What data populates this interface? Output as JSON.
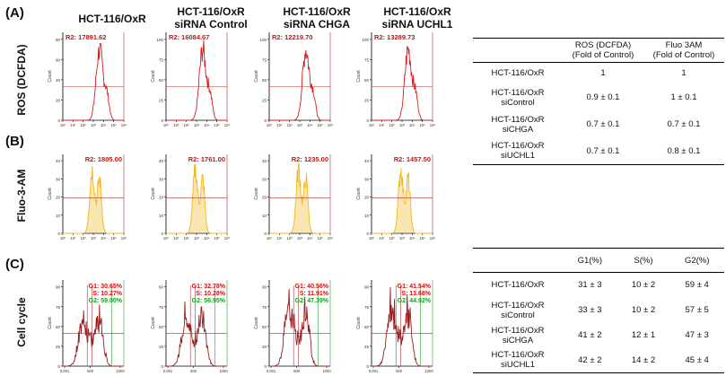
{
  "panels": [
    {
      "label": "(A)",
      "row_title": "ROS (DCFDA)"
    },
    {
      "label": "(B)",
      "row_title": "Fluo-3-AM"
    },
    {
      "label": "(C)",
      "row_title": "Cell cycle"
    }
  ],
  "columns": [
    {
      "line1": "HCT-116/OxR",
      "line2": ""
    },
    {
      "line1": "HCT-116/OxR",
      "line2": "siRNA Control"
    },
    {
      "line1": "HCT-116/OxR",
      "line2": "siRNA CHGA"
    },
    {
      "line1": "HCT-116/OxR",
      "line2": "siRNA UCHL1"
    }
  ],
  "colors": {
    "ros": "#e0191b",
    "fluo": "#f2b81c",
    "cycle": "#9b1c1c",
    "gate_ros": "#b03030",
    "gate_green": "#28a030",
    "label_red": "#d01010",
    "label_green": "#12a020"
  },
  "ros_gates": [
    "R2: 17891.62",
    "R2: 16084.67",
    "R2: 12219.70",
    "R2: 13289.73"
  ],
  "fluo_gates": [
    "R2: 1805.00",
    "R2: 1761.00",
    "R2: 1235.00",
    "R2: 1457.50"
  ],
  "cycle_gates": [
    {
      "g1": "G1: 30.65%",
      "s": "S: 10.27%",
      "g2": "G2: 59.00%"
    },
    {
      "g1": "G1: 32.78%",
      "s": "S: 10.28%",
      "g2": "G2: 56.95%"
    },
    {
      "g1": "G1: 40.56%",
      "s": "S: 11.91%",
      "g2": "G2: 47.39%"
    },
    {
      "g1": "G1: 41.54%",
      "s": "S: 13.68%",
      "g2": "G2: 44.92%"
    }
  ],
  "axes": {
    "count_label": "Count",
    "ros_yticks": [
      "0",
      "20",
      "40",
      "60",
      "80"
    ],
    "ros_yticks_alt": [
      "0",
      "25",
      "50",
      "75",
      "100"
    ],
    "fluo_yticks": [
      "0",
      "10",
      "20",
      "30",
      "40"
    ],
    "cycle_yticks": [
      "0",
      "25",
      "50",
      "75",
      "90"
    ],
    "log_xticks": [
      "10⁰",
      "10¹",
      "10²",
      "10³",
      "10⁴",
      "10⁵",
      "10⁶"
    ],
    "cycle_xticks": [
      "0.001",
      "500",
      "1000"
    ]
  },
  "table_ros": {
    "headers": [
      "",
      "ROS (DCFDA)\n(Fold of Control)",
      "Fluo 3AM\n(Fold of Control)"
    ],
    "rows": [
      {
        "name": "HCT-116/OxR",
        "v1": "1",
        "v2": "1"
      },
      {
        "name": "HCT-116/OxR\nsiControl",
        "v1": "0.9 ± 0.1",
        "v2": "1 ± 0.1"
      },
      {
        "name": "HCT-116/OxR\nsiCHGA",
        "v1": "0.7 ± 0.1",
        "v2": "0.7 ± 0.1"
      },
      {
        "name": "HCT-116/OxR\nsiUCHL1",
        "v1": "0.7 ± 0.1",
        "v2": "0.8 ± 0.1"
      }
    ]
  },
  "table_cycle": {
    "headers": [
      "",
      "G1(%)",
      "S(%)",
      "G2(%)"
    ],
    "rows": [
      {
        "name": "HCT-116/OxR",
        "g1": "31 ± 3",
        "s": "10 ± 2",
        "g2": "59 ± 4"
      },
      {
        "name": "HCT-116/OxR\nsiControl",
        "g1": "33 ± 3",
        "s": "10 ± 2",
        "g2": "57 ± 5"
      },
      {
        "name": "HCT-116/OxR\nsiCHGA",
        "g1": "41 ± 2",
        "s": "12 ± 1",
        "g2": "47 ± 3"
      },
      {
        "name": "HCT-116/OxR\nsiUCHL1",
        "g1": "42 ± 2",
        "s": "14 ± 2",
        "g2": "45 ± 4"
      }
    ]
  }
}
